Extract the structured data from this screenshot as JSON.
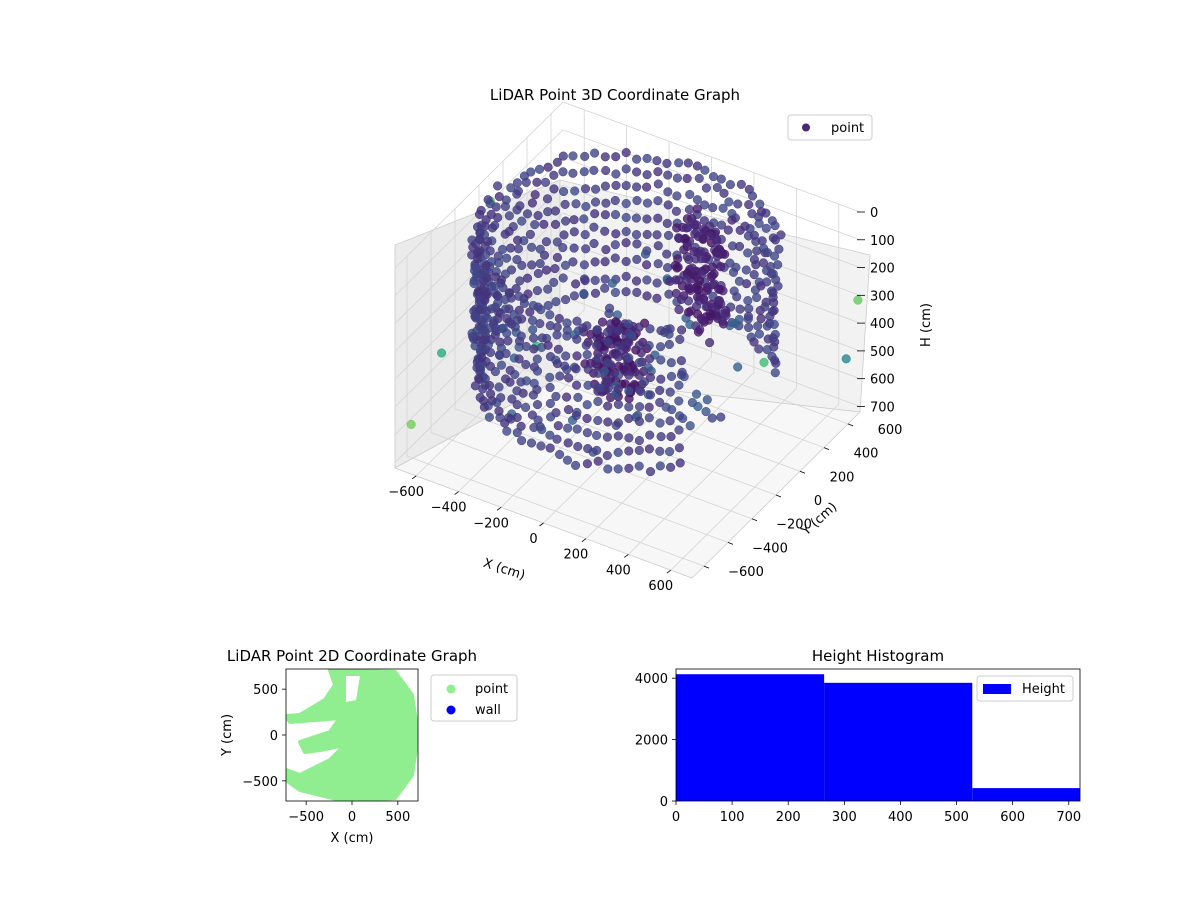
{
  "chart_data": [
    {
      "type": "scatter",
      "projection": "3d",
      "title": "LiDAR Point 3D Coordinate Graph",
      "xlabel": "X (cm)",
      "ylabel": "Y (cm)",
      "zlabel": "H (cm)",
      "xlim": [
        -700,
        700
      ],
      "ylim": [
        -700,
        700
      ],
      "zlim": [
        720,
        0
      ],
      "xticks": [
        "−600",
        "−400",
        "−200",
        "0",
        "200",
        "400",
        "600"
      ],
      "yticks": [
        "−600",
        "−400",
        "−200",
        "0",
        "200",
        "400",
        "600"
      ],
      "zticks": [
        "0",
        "100",
        "200",
        "300",
        "400",
        "500",
        "600",
        "700"
      ],
      "grid": true,
      "legend": {
        "position": "top-right",
        "entries": [
          {
            "label": "point",
            "color": "#482878"
          }
        ]
      },
      "colormap": "viridis",
      "structure": {
        "outer_wall": {
          "radius_cm": 640,
          "height_range_cm": [
            0,
            530
          ],
          "arc_from_deg": 40,
          "arc_to_deg": 320
        },
        "inner_objects": [
          {
            "x": 200,
            "y": 280,
            "h_range": [
              0,
              380
            ]
          },
          {
            "x": -100,
            "y": 80,
            "h_range": [
              350,
              600
            ]
          }
        ],
        "outliers": [
          {
            "x": -680,
            "y": -600,
            "h": 600
          },
          {
            "x": -650,
            "y": -400,
            "h": 420
          },
          {
            "x": -600,
            "y": 300,
            "h": 680
          },
          {
            "x": 700,
            "y": -100,
            "h": 200
          },
          {
            "x": 680,
            "y": 620,
            "h": 500
          },
          {
            "x": 690,
            "y": 700,
            "h": 320
          },
          {
            "x": -690,
            "y": 80,
            "h": 90
          }
        ]
      }
    },
    {
      "type": "scatter",
      "title": "LiDAR Point 2D Coordinate Graph",
      "xlabel": "X (cm)",
      "ylabel": "Y (cm)",
      "xlim": [
        -720,
        720
      ],
      "ylim": [
        -720,
        720
      ],
      "xticks": [
        -500,
        0,
        500
      ],
      "yticks": [
        -500,
        0,
        500
      ],
      "legend": {
        "position": "right",
        "entries": [
          {
            "label": "point",
            "color": "#90ee90"
          },
          {
            "label": "wall",
            "color": "#0000ff"
          }
        ]
      }
    },
    {
      "type": "bar",
      "subtype": "histogram",
      "title": "Height Histogram",
      "bins": [
        {
          "from": 0,
          "to": 264,
          "count": 4130
        },
        {
          "from": 264,
          "to": 528,
          "count": 3850
        },
        {
          "from": 528,
          "to": 720,
          "count": 420
        }
      ],
      "color": "#0000ff",
      "xlim": [
        0,
        720
      ],
      "ylim": [
        0,
        4300
      ],
      "xticks": [
        0,
        100,
        200,
        300,
        400,
        500,
        600,
        700
      ],
      "yticks": [
        0,
        2000,
        4000
      ],
      "legend": {
        "position": "top-right",
        "entries": [
          {
            "label": "Height",
            "color": "#0000ff"
          }
        ]
      }
    }
  ]
}
